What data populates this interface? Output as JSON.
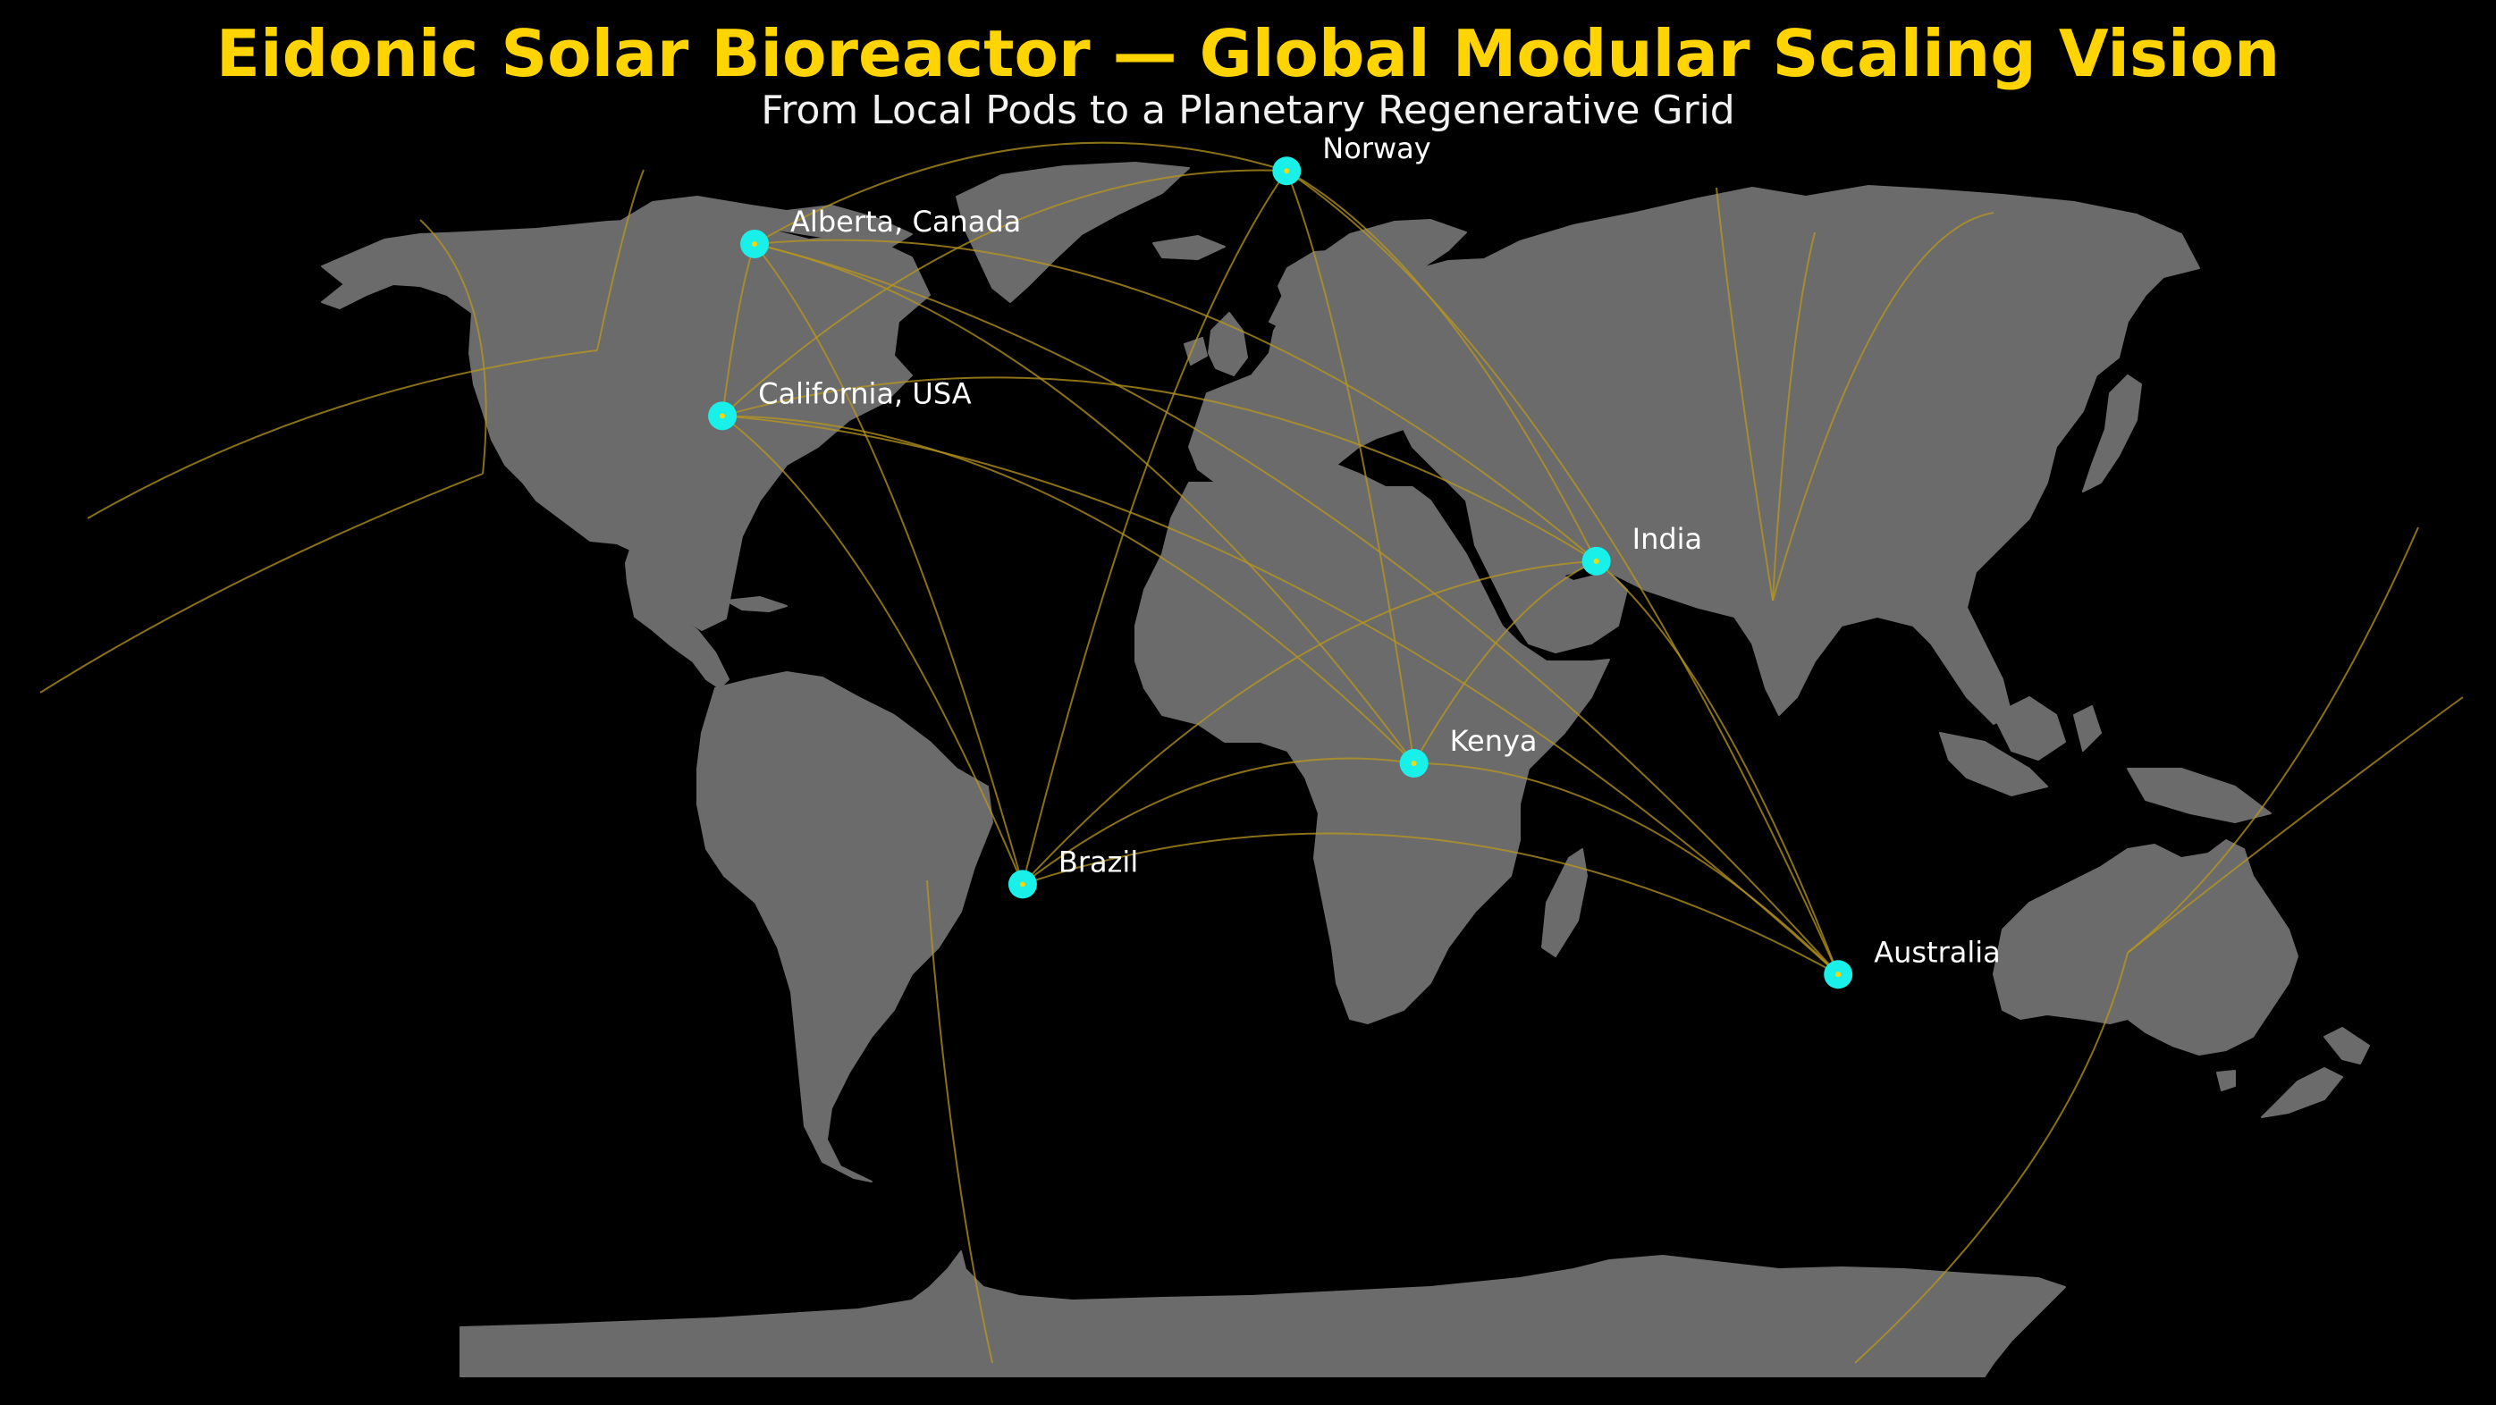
{
  "header": {
    "title": "Eidonic Solar Bioreactor — Global Modular Scaling Vision",
    "subtitle": "From Local Pods to a Planetary Regenerative Grid"
  },
  "colors": {
    "background": "#000000",
    "land": "#6b6b6b",
    "title": "#FFD400",
    "node": "#19F0EA",
    "route": "#B8961E"
  },
  "map": {
    "projection": "robinson",
    "nodes": [
      {
        "id": "alberta",
        "label": "Alberta, Canada",
        "lon": -114,
        "lat": 54
      },
      {
        "id": "california",
        "label": "California, USA",
        "lon": -120,
        "lat": 37
      },
      {
        "id": "norway",
        "label": "Norway",
        "lon": 9,
        "lat": 61
      },
      {
        "id": "india",
        "label": "India",
        "lon": 79,
        "lat": 22
      },
      {
        "id": "kenya",
        "label": "Kenya",
        "lon": 37.5,
        "lat": 0
      },
      {
        "id": "brazil",
        "label": "Brazil",
        "lon": -51,
        "lat": -14
      },
      {
        "id": "australia",
        "label": "Australia",
        "lon": 134,
        "lat": -25
      }
    ]
  }
}
